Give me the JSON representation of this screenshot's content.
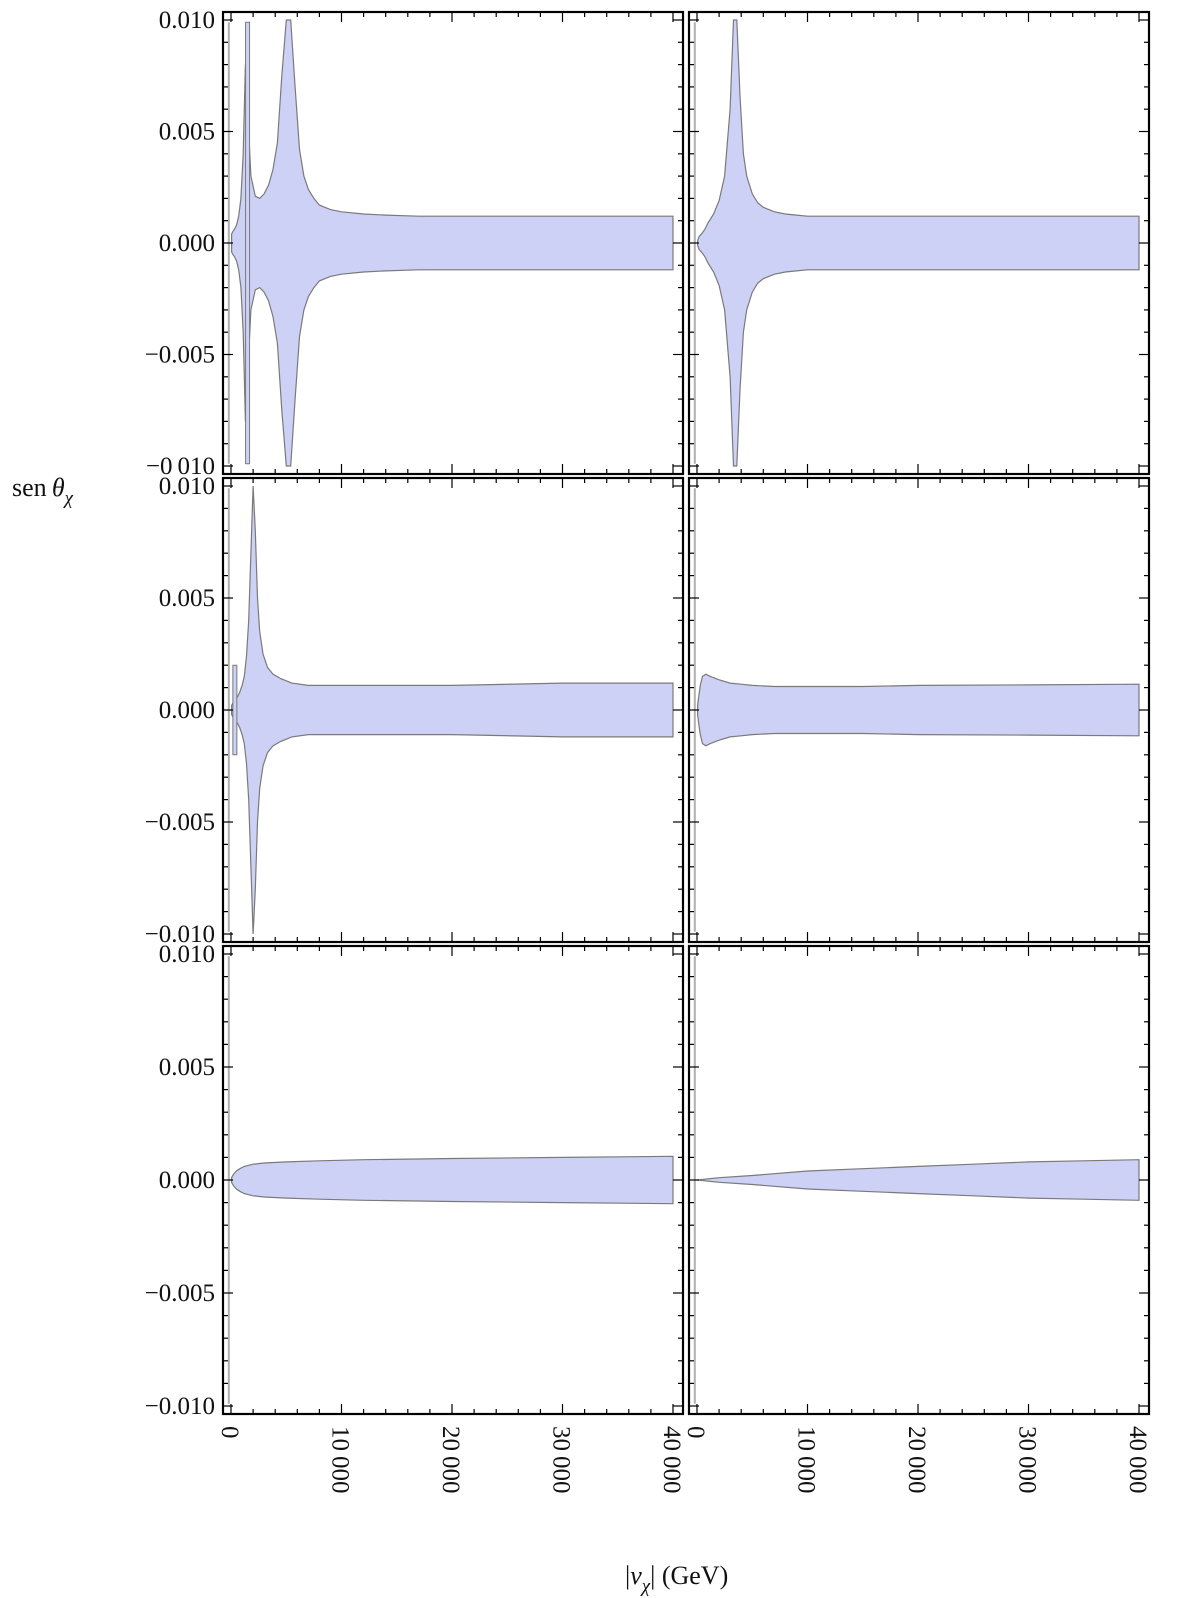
{
  "chart_data": {
    "type": "area",
    "layout": "3x2 grid of panels with shared axes",
    "ylabel": {
      "prefix": "sen ",
      "symbol": "θ",
      "subscript": "χ"
    },
    "xlabel": {
      "open": "|",
      "symbol": "v",
      "subscript": "χ",
      "close": "| (GeV)"
    },
    "xlim": [
      0,
      40000
    ],
    "ylim": [
      -0.01,
      0.01
    ],
    "x_ticks": [
      0,
      10000,
      20000,
      30000,
      40000
    ],
    "x_tick_labels": [
      "0",
      "10 000",
      "20 000",
      "30 000",
      "40 000"
    ],
    "y_ticks": [
      0.01,
      0.005,
      0.0,
      -0.005,
      -0.01
    ],
    "y_tick_labels": [
      "0.010",
      "0.005",
      "0.000",
      "−0.005",
      "−0.010"
    ],
    "y_tick_labels_top_row": [
      "0.010",
      "0.005",
      "0.000",
      "−0.005",
      "−0.010"
    ],
    "y_bottom_label_top_row": "−0 010",
    "fill_color": "#cdd1f5",
    "edge_color": "#7a7a7a",
    "panels": [
      {
        "row": 0,
        "col": 0,
        "band": {
          "x": [
            50,
            150,
            300,
            500,
            700,
            900,
            1100,
            1300,
            1500,
            1800,
            2200,
            2600,
            3000,
            3400,
            3800,
            4200,
            4600,
            5000,
            5400,
            5800,
            6200,
            6600,
            7000,
            7500,
            8000,
            9000,
            10000,
            12000,
            14000,
            17000,
            20000,
            25000,
            30000,
            35000,
            40000
          ],
          "upper": [
            0.0004,
            0.0005,
            0.0006,
            0.0008,
            0.0012,
            0.002,
            0.004,
            0.008,
            0.006,
            0.003,
            0.0021,
            0.002,
            0.0022,
            0.0026,
            0.0033,
            0.0045,
            0.0075,
            0.01,
            0.01,
            0.007,
            0.0042,
            0.003,
            0.0024,
            0.002,
            0.0017,
            0.0015,
            0.0014,
            0.0013,
            0.00125,
            0.0012,
            0.0012,
            0.0012,
            0.0012,
            0.0012,
            0.0012
          ]
        },
        "spikes": [
          {
            "x": 1500,
            "ymin": -0.0099,
            "ymax": 0.0099
          }
        ],
        "lines": [
          {
            "x": -200,
            "ymin": -0.0099,
            "ymax": 0.0099
          }
        ]
      },
      {
        "row": 0,
        "col": 1,
        "band": {
          "x": [
            50,
            200,
            400,
            700,
            1000,
            1500,
            2000,
            2500,
            3000,
            3300,
            3600,
            3900,
            4200,
            4500,
            5000,
            5500,
            6000,
            7000,
            8000,
            9000,
            10000,
            12000,
            15000,
            20000,
            30000,
            40000
          ],
          "upper": [
            0.0001,
            0.0003,
            0.0004,
            0.0006,
            0.0009,
            0.0013,
            0.0019,
            0.003,
            0.006,
            0.01,
            0.01,
            0.0065,
            0.004,
            0.003,
            0.0022,
            0.0018,
            0.0016,
            0.0014,
            0.0013,
            0.00125,
            0.0012,
            0.0012,
            0.0012,
            0.0012,
            0.0012,
            0.0012
          ]
        },
        "spikes": [],
        "lines": [
          {
            "x": -200,
            "ymin": -0.0099,
            "ymax": 0.0099
          }
        ]
      },
      {
        "row": 1,
        "col": 0,
        "band": {
          "x": [
            50,
            150,
            300,
            450,
            600,
            800,
            1000,
            1200,
            1400,
            1600,
            1800,
            2000,
            2200,
            2400,
            2600,
            2900,
            3300,
            3800,
            4500,
            5500,
            7000,
            9000,
            12000,
            20000,
            30000,
            40000
          ],
          "upper": [
            0.0002,
            0.0003,
            0.0004,
            0.0005,
            0.0006,
            0.0008,
            0.0011,
            0.0015,
            0.0024,
            0.004,
            0.007,
            0.01,
            0.008,
            0.005,
            0.0035,
            0.0025,
            0.0019,
            0.0016,
            0.0014,
            0.0012,
            0.0011,
            0.0011,
            0.0011,
            0.0011,
            0.0012,
            0.0012
          ]
        },
        "spikes": [
          {
            "x": 350,
            "ymin": -0.002,
            "ymax": 0.002
          }
        ],
        "lines": [
          {
            "x": -200,
            "ymin": -0.0099,
            "ymax": 0.0099
          }
        ]
      },
      {
        "row": 1,
        "col": 1,
        "band": {
          "x": [
            50,
            150,
            300,
            500,
            800,
            1200,
            2000,
            3000,
            4000,
            5000,
            7000,
            10000,
            15000,
            20000,
            30000,
            40000
          ],
          "upper": [
            0.0002,
            0.0006,
            0.0011,
            0.0015,
            0.0016,
            0.0015,
            0.00135,
            0.0012,
            0.00115,
            0.0011,
            0.00105,
            0.00105,
            0.00105,
            0.0011,
            0.00112,
            0.00115
          ]
        },
        "spikes": [],
        "lines": [
          {
            "x": -200,
            "ymin": -0.0099,
            "ymax": 0.0099
          }
        ]
      },
      {
        "row": 2,
        "col": 0,
        "band": {
          "x": [
            50,
            150,
            300,
            500,
            800,
            1200,
            2000,
            3000,
            5000,
            8000,
            12000,
            20000,
            30000,
            40000
          ],
          "upper": [
            0.0001,
            0.0002,
            0.0003,
            0.0004,
            0.0005,
            0.0006,
            0.0007,
            0.00075,
            0.0008,
            0.00085,
            0.0009,
            0.00095,
            0.001,
            0.00105
          ]
        },
        "spikes": [],
        "lines": [
          {
            "x": -200,
            "ymin": -0.0099,
            "ymax": 0.0099
          }
        ]
      },
      {
        "row": 2,
        "col": 1,
        "band": {
          "x": [
            0,
            2000,
            5000,
            10000,
            15000,
            20000,
            25000,
            30000,
            35000,
            40000
          ],
          "upper": [
            0.0,
            0.0001,
            0.0002,
            0.0004,
            0.0005,
            0.0006,
            0.0007,
            0.0008,
            0.00085,
            0.0009
          ]
        },
        "spikes": [],
        "lines": [
          {
            "x": -200,
            "ymin": -0.0099,
            "ymax": 0.0099
          }
        ]
      }
    ]
  }
}
